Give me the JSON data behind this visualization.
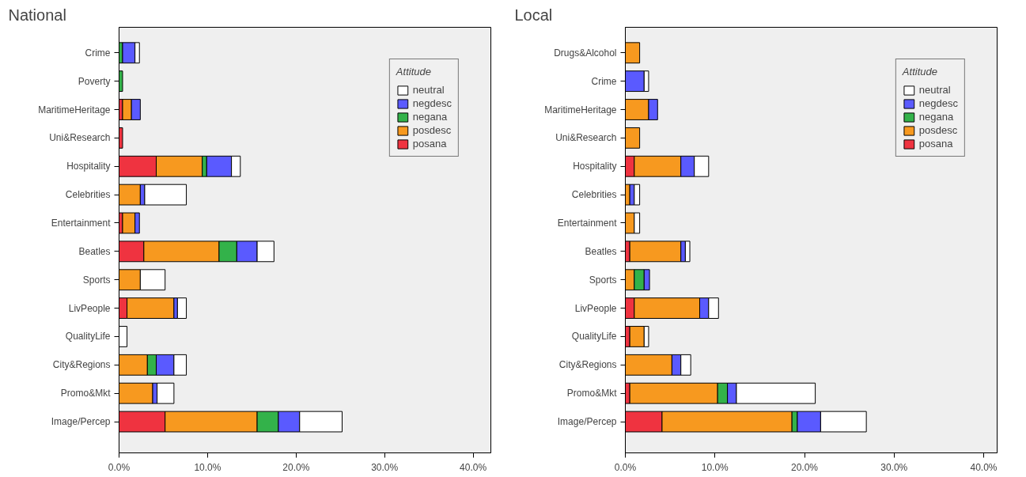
{
  "chart_data": [
    {
      "type": "bar",
      "title": "National",
      "orientation": "horizontal",
      "stacked": true,
      "legend": "top right",
      "legend_title": "Attitude",
      "grid": false,
      "categories": [
        "Crime",
        "Poverty",
        "MaritimeHeritage",
        "Uni&Research",
        "Hospitality",
        "Celebrities",
        "Entertainment",
        "Beatles",
        "Sports",
        "LivPeople",
        "QualityLife",
        "City&Regions",
        "Promo&Mkt",
        "Image/Percep"
      ],
      "xlim": [
        0,
        42
      ],
      "xticks": [
        {
          "value": 0,
          "label": "0.0%"
        },
        {
          "value": 10,
          "label": "10.0%"
        },
        {
          "value": 20,
          "label": "20.0%"
        },
        {
          "value": 30,
          "label": "30.0%"
        },
        {
          "value": 40,
          "label": "40.0%"
        }
      ],
      "series": [
        {
          "name": "posana",
          "color": "#ef3340",
          "values": [
            null,
            null,
            0.4,
            0.4,
            4.2,
            null,
            0.4,
            2.8,
            null,
            0.9,
            null,
            null,
            null,
            5.2
          ]
        },
        {
          "name": "posdesc",
          "color": "#f7991f",
          "values": [
            null,
            null,
            1.0,
            null,
            5.2,
            2.4,
            1.4,
            8.5,
            2.4,
            5.3,
            null,
            3.2,
            3.8,
            10.4
          ]
        },
        {
          "name": "negana",
          "color": "#33b24a",
          "values": [
            0.4,
            0.4,
            null,
            null,
            0.5,
            null,
            null,
            2.0,
            null,
            null,
            null,
            1.0,
            null,
            2.4
          ]
        },
        {
          "name": "negdesc",
          "color": "#5a5aff",
          "values": [
            1.4,
            null,
            1.0,
            null,
            2.8,
            0.5,
            0.5,
            2.3,
            null,
            0.4,
            null,
            2.0,
            0.5,
            2.4
          ]
        },
        {
          "name": "neutral",
          "color": "#ffffff",
          "values": [
            0.5,
            null,
            null,
            null,
            1.0,
            4.7,
            null,
            1.9,
            2.8,
            1.0,
            0.9,
            1.4,
            1.9,
            4.8
          ]
        }
      ]
    },
    {
      "type": "bar",
      "title": "Local",
      "orientation": "horizontal",
      "stacked": true,
      "legend": "top right",
      "legend_title": "Attitude",
      "grid": false,
      "categories": [
        "Drugs&Alcohol",
        "Crime",
        "MaritimeHeritage",
        "Uni&Research",
        "Hospitality",
        "Celebrities",
        "Entertainment",
        "Beatles",
        "Sports",
        "LivPeople",
        "QualityLife",
        "City&Regions",
        "Promo&Mkt",
        "Image/Percep"
      ],
      "xlim": [
        0,
        41.5
      ],
      "xticks": [
        {
          "value": 0,
          "label": "0.0%"
        },
        {
          "value": 10,
          "label": "10.0%"
        },
        {
          "value": 20,
          "label": "20.0%"
        },
        {
          "value": 30,
          "label": "30.0%"
        },
        {
          "value": 40,
          "label": "40.0%"
        }
      ],
      "series": [
        {
          "name": "posana",
          "color": "#ef3340",
          "values": [
            null,
            null,
            null,
            null,
            1.0,
            null,
            null,
            0.5,
            null,
            1.0,
            0.5,
            null,
            0.5,
            4.1
          ]
        },
        {
          "name": "posdesc",
          "color": "#f7991f",
          "values": [
            1.6,
            null,
            2.6,
            1.6,
            5.2,
            0.5,
            1.0,
            5.7,
            1.0,
            7.3,
            1.6,
            5.2,
            9.8,
            14.5
          ]
        },
        {
          "name": "negana",
          "color": "#33b24a",
          "values": [
            null,
            null,
            null,
            null,
            null,
            null,
            null,
            null,
            1.1,
            null,
            null,
            null,
            1.1,
            0.6
          ]
        },
        {
          "name": "negdesc",
          "color": "#5a5aff",
          "values": [
            null,
            2.1,
            1.0,
            null,
            1.5,
            0.5,
            null,
            0.5,
            0.6,
            1.0,
            null,
            1.0,
            1.0,
            2.6
          ]
        },
        {
          "name": "neutral",
          "color": "#ffffff",
          "values": [
            null,
            0.5,
            null,
            null,
            1.6,
            0.6,
            0.6,
            0.5,
            null,
            1.1,
            0.5,
            1.1,
            8.8,
            5.1
          ]
        }
      ]
    }
  ]
}
